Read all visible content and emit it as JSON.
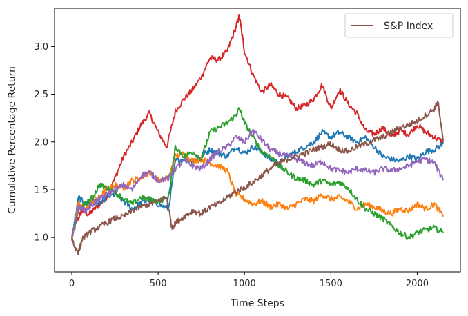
{
  "chart_data": {
    "type": "line",
    "title": "",
    "xlabel": "Time Steps",
    "ylabel": "Cumulative Percentage Return",
    "xlim": [
      -100,
      2250
    ],
    "ylim": [
      0.64,
      3.4
    ],
    "x_ticks": [
      0,
      500,
      1000,
      1500,
      2000
    ],
    "y_ticks": [
      1.0,
      1.5,
      2.0,
      2.5,
      3.0
    ],
    "x_tick_labels": [
      "0",
      "500",
      "1000",
      "1500",
      "2000"
    ],
    "y_tick_labels": [
      "1.0",
      "1.5",
      "2.0",
      "2.5",
      "3.0"
    ],
    "grid": false,
    "legend": {
      "placement": "top-right",
      "entries": [
        "S&P Index"
      ]
    },
    "series": [
      {
        "color": "#d62728",
        "points": [
          [
            0,
            1.0
          ],
          [
            30,
            1.18
          ],
          [
            60,
            1.28
          ],
          [
            100,
            1.24
          ],
          [
            150,
            1.33
          ],
          [
            200,
            1.42
          ],
          [
            250,
            1.62
          ],
          [
            300,
            1.85
          ],
          [
            350,
            2.0
          ],
          [
            400,
            2.18
          ],
          [
            450,
            2.3
          ],
          [
            500,
            2.1
          ],
          [
            550,
            1.95
          ],
          [
            600,
            2.32
          ],
          [
            650,
            2.45
          ],
          [
            700,
            2.55
          ],
          [
            750,
            2.68
          ],
          [
            800,
            2.88
          ],
          [
            850,
            2.86
          ],
          [
            900,
            2.95
          ],
          [
            950,
            3.2
          ],
          [
            970,
            3.32
          ],
          [
            1000,
            2.95
          ],
          [
            1050,
            2.7
          ],
          [
            1100,
            2.52
          ],
          [
            1150,
            2.6
          ],
          [
            1200,
            2.5
          ],
          [
            1250,
            2.46
          ],
          [
            1300,
            2.35
          ],
          [
            1350,
            2.38
          ],
          [
            1400,
            2.45
          ],
          [
            1450,
            2.6
          ],
          [
            1500,
            2.35
          ],
          [
            1550,
            2.55
          ],
          [
            1600,
            2.4
          ],
          [
            1650,
            2.3
          ],
          [
            1700,
            2.12
          ],
          [
            1750,
            2.08
          ],
          [
            1800,
            2.15
          ],
          [
            1850,
            2.05
          ],
          [
            1900,
            2.12
          ],
          [
            1950,
            2.08
          ],
          [
            2000,
            2.18
          ],
          [
            2050,
            2.1
          ],
          [
            2100,
            2.05
          ],
          [
            2150,
            2.0
          ]
        ]
      },
      {
        "color": "#1f77b4",
        "points": [
          [
            0,
            1.0
          ],
          [
            40,
            1.42
          ],
          [
            80,
            1.35
          ],
          [
            120,
            1.4
          ],
          [
            160,
            1.35
          ],
          [
            200,
            1.42
          ],
          [
            250,
            1.45
          ],
          [
            300,
            1.38
          ],
          [
            350,
            1.3
          ],
          [
            400,
            1.36
          ],
          [
            450,
            1.4
          ],
          [
            500,
            1.35
          ],
          [
            560,
            1.3
          ],
          [
            600,
            1.8
          ],
          [
            650,
            1.82
          ],
          [
            700,
            1.8
          ],
          [
            750,
            1.85
          ],
          [
            800,
            1.92
          ],
          [
            850,
            1.88
          ],
          [
            900,
            1.85
          ],
          [
            950,
            1.95
          ],
          [
            1000,
            1.88
          ],
          [
            1050,
            1.95
          ],
          [
            1100,
            1.9
          ],
          [
            1150,
            1.82
          ],
          [
            1200,
            1.78
          ],
          [
            1250,
            1.85
          ],
          [
            1300,
            1.9
          ],
          [
            1350,
            1.95
          ],
          [
            1400,
            2.0
          ],
          [
            1450,
            2.1
          ],
          [
            1500,
            2.05
          ],
          [
            1550,
            2.1
          ],
          [
            1600,
            2.05
          ],
          [
            1650,
            2.0
          ],
          [
            1700,
            2.05
          ],
          [
            1750,
            1.95
          ],
          [
            1800,
            1.85
          ],
          [
            1850,
            1.82
          ],
          [
            1900,
            1.8
          ],
          [
            1950,
            1.85
          ],
          [
            2000,
            1.82
          ],
          [
            2050,
            1.9
          ],
          [
            2100,
            1.92
          ],
          [
            2150,
            1.98
          ]
        ]
      },
      {
        "color": "#ff7f0e",
        "points": [
          [
            0,
            1.0
          ],
          [
            40,
            1.35
          ],
          [
            80,
            1.3
          ],
          [
            120,
            1.38
          ],
          [
            160,
            1.42
          ],
          [
            200,
            1.5
          ],
          [
            250,
            1.55
          ],
          [
            300,
            1.52
          ],
          [
            350,
            1.6
          ],
          [
            400,
            1.62
          ],
          [
            450,
            1.68
          ],
          [
            500,
            1.6
          ],
          [
            560,
            1.62
          ],
          [
            600,
            1.85
          ],
          [
            650,
            1.88
          ],
          [
            700,
            1.8
          ],
          [
            750,
            1.82
          ],
          [
            800,
            1.78
          ],
          [
            850,
            1.75
          ],
          [
            900,
            1.7
          ],
          [
            950,
            1.45
          ],
          [
            1000,
            1.4
          ],
          [
            1050,
            1.35
          ],
          [
            1100,
            1.38
          ],
          [
            1150,
            1.32
          ],
          [
            1200,
            1.35
          ],
          [
            1250,
            1.3
          ],
          [
            1300,
            1.35
          ],
          [
            1350,
            1.4
          ],
          [
            1400,
            1.38
          ],
          [
            1450,
            1.45
          ],
          [
            1500,
            1.4
          ],
          [
            1550,
            1.42
          ],
          [
            1600,
            1.38
          ],
          [
            1650,
            1.3
          ],
          [
            1700,
            1.35
          ],
          [
            1750,
            1.32
          ],
          [
            1800,
            1.28
          ],
          [
            1850,
            1.25
          ],
          [
            1900,
            1.3
          ],
          [
            1950,
            1.28
          ],
          [
            2000,
            1.35
          ],
          [
            2050,
            1.3
          ],
          [
            2100,
            1.35
          ],
          [
            2150,
            1.22
          ]
        ]
      },
      {
        "color": "#2ca02c",
        "points": [
          [
            0,
            1.0
          ],
          [
            40,
            1.3
          ],
          [
            80,
            1.35
          ],
          [
            120,
            1.42
          ],
          [
            160,
            1.55
          ],
          [
            200,
            1.52
          ],
          [
            250,
            1.48
          ],
          [
            300,
            1.4
          ],
          [
            350,
            1.35
          ],
          [
            400,
            1.42
          ],
          [
            450,
            1.4
          ],
          [
            500,
            1.38
          ],
          [
            560,
            1.42
          ],
          [
            600,
            1.95
          ],
          [
            650,
            1.85
          ],
          [
            700,
            1.9
          ],
          [
            750,
            1.82
          ],
          [
            800,
            2.1
          ],
          [
            850,
            2.15
          ],
          [
            900,
            2.2
          ],
          [
            950,
            2.28
          ],
          [
            970,
            2.35
          ],
          [
            1000,
            2.2
          ],
          [
            1050,
            2.05
          ],
          [
            1100,
            1.9
          ],
          [
            1150,
            1.85
          ],
          [
            1200,
            1.75
          ],
          [
            1250,
            1.68
          ],
          [
            1300,
            1.62
          ],
          [
            1350,
            1.6
          ],
          [
            1400,
            1.55
          ],
          [
            1450,
            1.6
          ],
          [
            1500,
            1.55
          ],
          [
            1550,
            1.58
          ],
          [
            1600,
            1.52
          ],
          [
            1650,
            1.4
          ],
          [
            1700,
            1.3
          ],
          [
            1750,
            1.25
          ],
          [
            1800,
            1.2
          ],
          [
            1850,
            1.12
          ],
          [
            1900,
            1.05
          ],
          [
            1950,
            1.0
          ],
          [
            2000,
            1.05
          ],
          [
            2050,
            1.08
          ],
          [
            2100,
            1.1
          ],
          [
            2150,
            1.05
          ]
        ]
      },
      {
        "color": "#9467bd",
        "points": [
          [
            0,
            1.0
          ],
          [
            40,
            1.32
          ],
          [
            80,
            1.28
          ],
          [
            120,
            1.35
          ],
          [
            160,
            1.4
          ],
          [
            200,
            1.45
          ],
          [
            250,
            1.5
          ],
          [
            300,
            1.55
          ],
          [
            350,
            1.5
          ],
          [
            400,
            1.65
          ],
          [
            450,
            1.68
          ],
          [
            500,
            1.6
          ],
          [
            560,
            1.62
          ],
          [
            600,
            1.72
          ],
          [
            650,
            1.8
          ],
          [
            700,
            1.75
          ],
          [
            750,
            1.72
          ],
          [
            800,
            1.82
          ],
          [
            850,
            1.9
          ],
          [
            900,
            1.95
          ],
          [
            950,
            2.05
          ],
          [
            1000,
            2.0
          ],
          [
            1050,
            2.12
          ],
          [
            1100,
            2.02
          ],
          [
            1150,
            1.92
          ],
          [
            1200,
            1.88
          ],
          [
            1250,
            1.85
          ],
          [
            1300,
            1.82
          ],
          [
            1350,
            1.78
          ],
          [
            1400,
            1.75
          ],
          [
            1450,
            1.8
          ],
          [
            1500,
            1.72
          ],
          [
            1550,
            1.7
          ],
          [
            1600,
            1.68
          ],
          [
            1650,
            1.72
          ],
          [
            1700,
            1.7
          ],
          [
            1750,
            1.68
          ],
          [
            1800,
            1.72
          ],
          [
            1850,
            1.7
          ],
          [
            1900,
            1.72
          ],
          [
            1950,
            1.75
          ],
          [
            2000,
            1.8
          ],
          [
            2050,
            1.82
          ],
          [
            2100,
            1.78
          ],
          [
            2150,
            1.6
          ]
        ]
      },
      {
        "name": "S&P Index",
        "color": "#8c564b",
        "points": [
          [
            0,
            1.0
          ],
          [
            20,
            0.88
          ],
          [
            40,
            0.85
          ],
          [
            60,
            0.98
          ],
          [
            100,
            1.05
          ],
          [
            150,
            1.1
          ],
          [
            200,
            1.15
          ],
          [
            250,
            1.2
          ],
          [
            300,
            1.22
          ],
          [
            350,
            1.28
          ],
          [
            400,
            1.32
          ],
          [
            450,
            1.35
          ],
          [
            500,
            1.38
          ],
          [
            550,
            1.42
          ],
          [
            580,
            1.1
          ],
          [
            600,
            1.15
          ],
          [
            650,
            1.22
          ],
          [
            700,
            1.28
          ],
          [
            750,
            1.25
          ],
          [
            800,
            1.32
          ],
          [
            850,
            1.35
          ],
          [
            900,
            1.42
          ],
          [
            950,
            1.48
          ],
          [
            1000,
            1.52
          ],
          [
            1050,
            1.58
          ],
          [
            1100,
            1.65
          ],
          [
            1150,
            1.72
          ],
          [
            1200,
            1.78
          ],
          [
            1250,
            1.82
          ],
          [
            1300,
            1.85
          ],
          [
            1350,
            1.88
          ],
          [
            1400,
            1.92
          ],
          [
            1450,
            1.95
          ],
          [
            1500,
            1.98
          ],
          [
            1550,
            1.92
          ],
          [
            1600,
            1.9
          ],
          [
            1650,
            1.95
          ],
          [
            1700,
            1.98
          ],
          [
            1750,
            2.02
          ],
          [
            1800,
            2.05
          ],
          [
            1850,
            2.1
          ],
          [
            1900,
            2.15
          ],
          [
            1950,
            2.18
          ],
          [
            2000,
            2.22
          ],
          [
            2050,
            2.28
          ],
          [
            2100,
            2.35
          ],
          [
            2120,
            2.42
          ],
          [
            2150,
            2.0
          ]
        ]
      }
    ]
  }
}
